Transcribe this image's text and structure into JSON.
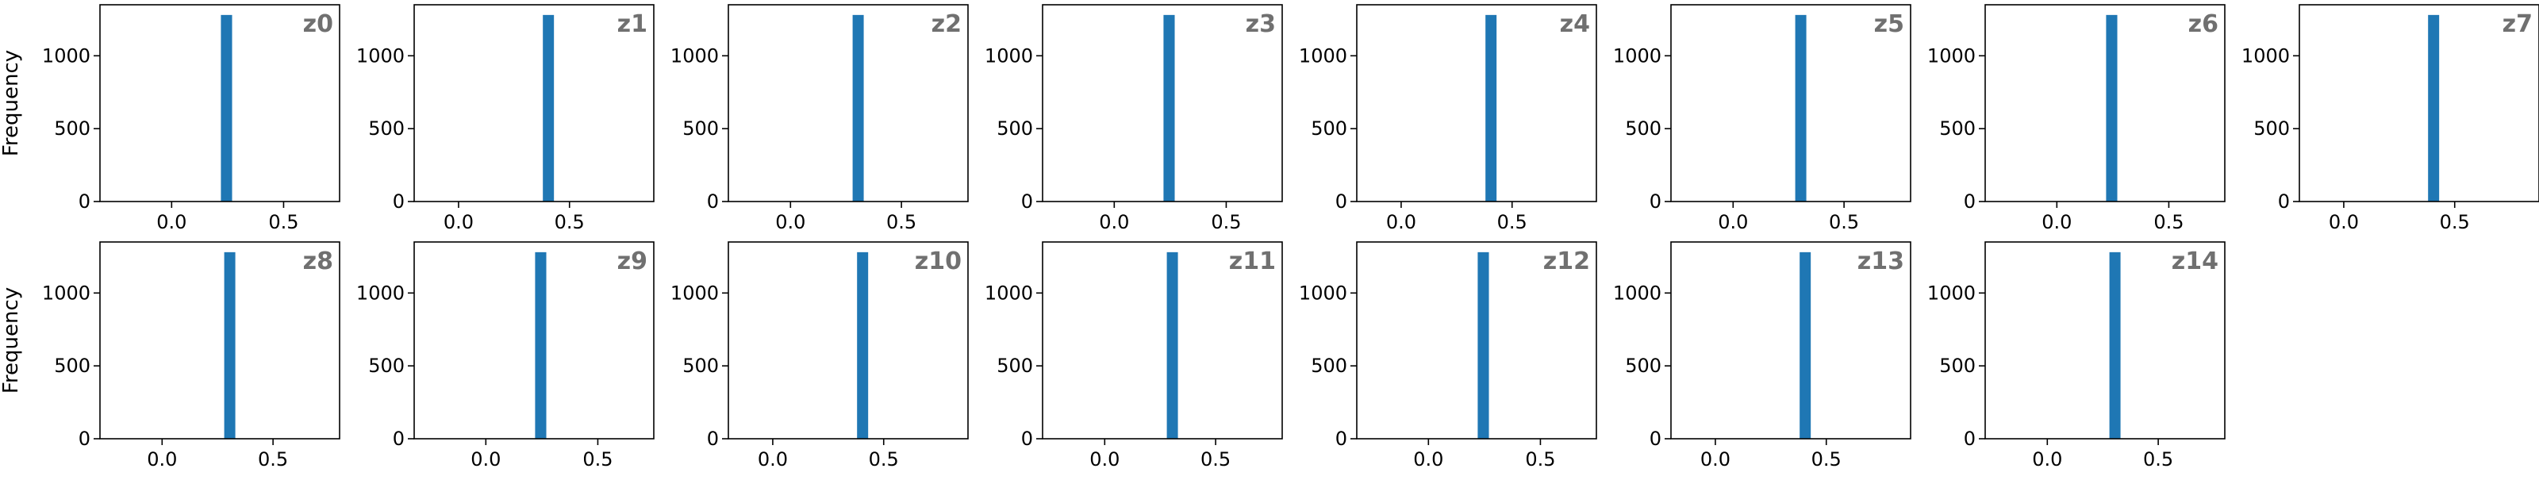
{
  "chart_data": {
    "type": "bar",
    "ylabel": "Frequency",
    "yticks": [
      0,
      500,
      1000
    ],
    "ylim": [
      0,
      1350
    ],
    "bar_color": "#1f77b4",
    "label_color": "#707070",
    "panels": [
      {
        "label": "z0",
        "xlim": [
          -0.32,
          0.75
        ],
        "xticks": [
          0.0,
          0.5
        ],
        "bar_x": [
          0.22,
          0.27
        ],
        "count": 1280
      },
      {
        "label": "z1",
        "xlim": [
          -0.2,
          0.88
        ],
        "xticks": [
          0.0,
          0.5
        ],
        "bar_x": [
          0.38,
          0.43
        ],
        "count": 1280
      },
      {
        "label": "z2",
        "xlim": [
          -0.28,
          0.8
        ],
        "xticks": [
          0.0,
          0.5
        ],
        "bar_x": [
          0.28,
          0.33
        ],
        "count": 1280
      },
      {
        "label": "z3",
        "xlim": [
          -0.32,
          0.75
        ],
        "xticks": [
          0.0,
          0.5
        ],
        "bar_x": [
          0.22,
          0.27
        ],
        "count": 1280
      },
      {
        "label": "z4",
        "xlim": [
          -0.2,
          0.88
        ],
        "xticks": [
          0.0,
          0.5
        ],
        "bar_x": [
          0.38,
          0.43
        ],
        "count": 1280
      },
      {
        "label": "z5",
        "xlim": [
          -0.28,
          0.8
        ],
        "xticks": [
          0.0,
          0.5
        ],
        "bar_x": [
          0.28,
          0.33
        ],
        "count": 1280
      },
      {
        "label": "z6",
        "xlim": [
          -0.32,
          0.75
        ],
        "xticks": [
          0.0,
          0.5
        ],
        "bar_x": [
          0.22,
          0.27
        ],
        "count": 1280
      },
      {
        "label": "z7",
        "xlim": [
          -0.2,
          0.88
        ],
        "xticks": [
          0.0,
          0.5
        ],
        "bar_x": [
          0.38,
          0.43
        ],
        "count": 1280
      },
      {
        "label": "z8",
        "xlim": [
          -0.28,
          0.8
        ],
        "xticks": [
          0.0,
          0.5
        ],
        "bar_x": [
          0.28,
          0.33
        ],
        "count": 1280
      },
      {
        "label": "z9",
        "xlim": [
          -0.32,
          0.75
        ],
        "xticks": [
          0.0,
          0.5
        ],
        "bar_x": [
          0.22,
          0.27
        ],
        "count": 1280
      },
      {
        "label": "z10",
        "xlim": [
          -0.2,
          0.88
        ],
        "xticks": [
          0.0,
          0.5
        ],
        "bar_x": [
          0.38,
          0.43
        ],
        "count": 1280
      },
      {
        "label": "z11",
        "xlim": [
          -0.28,
          0.8
        ],
        "xticks": [
          0.0,
          0.5
        ],
        "bar_x": [
          0.28,
          0.33
        ],
        "count": 1280
      },
      {
        "label": "z12",
        "xlim": [
          -0.32,
          0.75
        ],
        "xticks": [
          0.0,
          0.5
        ],
        "bar_x": [
          0.22,
          0.27
        ],
        "count": 1280
      },
      {
        "label": "z13",
        "xlim": [
          -0.2,
          0.88
        ],
        "xticks": [
          0.0,
          0.5
        ],
        "bar_x": [
          0.38,
          0.43
        ],
        "count": 1280
      },
      {
        "label": "z14",
        "xlim": [
          -0.28,
          0.8
        ],
        "xticks": [
          0.0,
          0.5
        ],
        "bar_x": [
          0.28,
          0.33
        ],
        "count": 1280
      }
    ]
  }
}
